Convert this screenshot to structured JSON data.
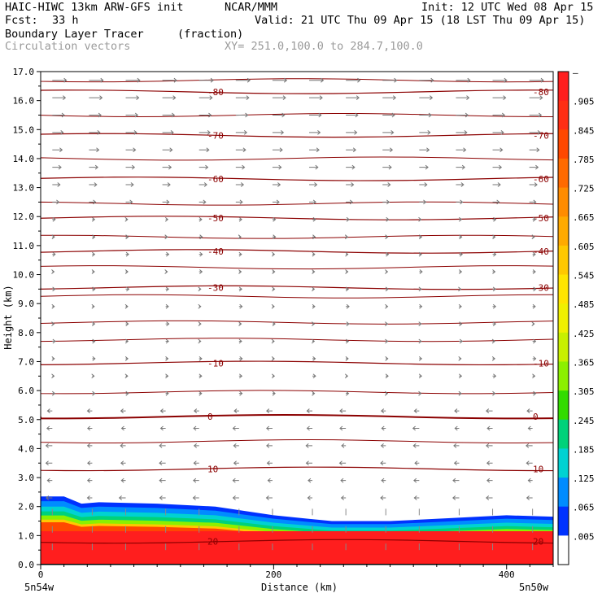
{
  "header": {
    "model": "HAIC-HIWC 13km ARW-GFS init",
    "org": "NCAR/MMM",
    "init": "Init: 12 UTC Wed 08 Apr 15",
    "fcst_label": "Fcst:",
    "fcst_value": "33 h",
    "valid": "Valid: 21 UTC Thu 09 Apr 15 (18 LST Thu 09 Apr 15)",
    "field": "Boundary Layer Tracer",
    "units": "(fraction)",
    "vectors": "Circulation vectors",
    "xy": "XY= 251.0,100.0 to 284.7,100.0"
  },
  "chart_data": {
    "type": "heatmap",
    "ylabel": "Height (km)",
    "xlabel": "Distance (km)",
    "xlim": [
      0,
      440
    ],
    "ylim": [
      0,
      17
    ],
    "yticks": [
      "0.0",
      "1.0",
      "2.0",
      "3.0",
      "4.0",
      "5.0",
      "6.0",
      "7.0",
      "8.0",
      "9.0",
      "10.0",
      "11.0",
      "12.0",
      "13.0",
      "14.0",
      "15.0",
      "16.0",
      "17.0"
    ],
    "xticks": [
      "0",
      "200",
      "400"
    ],
    "x_end_labels": {
      "left": "5n54w",
      "right": "5n50w"
    },
    "colorbar": {
      "labels": [
        "–",
        ".905",
        ".845",
        ".785",
        ".725",
        ".665",
        ".605",
        ".545",
        ".485",
        ".425",
        ".365",
        ".305",
        ".245",
        ".185",
        ".125",
        ".065",
        ".005"
      ],
      "colors": [
        "#ff1e1e",
        "#ff2e14",
        "#ff4800",
        "#ff6a00",
        "#ff8c00",
        "#ffaa00",
        "#ffc800",
        "#ffe400",
        "#f0f000",
        "#c8f000",
        "#8cf000",
        "#32dc00",
        "#00d27a",
        "#00d2d2",
        "#008cff",
        "#0032ff",
        "#ffffff"
      ]
    },
    "temperature_contours": [
      {
        "label": "20",
        "y": 0.8
      },
      {
        "label": "10",
        "y": 3.3
      },
      {
        "label": "0",
        "y": 5.1
      },
      {
        "label": "-10",
        "y": 6.95
      },
      {
        "label": "-30",
        "y": 9.55
      },
      {
        "label": "-40",
        "y": 10.8
      },
      {
        "label": "-50",
        "y": 11.95
      },
      {
        "label": "-60",
        "y": 13.3
      },
      {
        "label": "-70",
        "y": 14.8
      },
      {
        "label": "-80",
        "y": 16.3
      }
    ],
    "tracer_top_km": [
      [
        0,
        2.35
      ],
      [
        20,
        2.35
      ],
      [
        35,
        2.1
      ],
      [
        50,
        2.15
      ],
      [
        100,
        2.1
      ],
      [
        150,
        2.0
      ],
      [
        200,
        1.7
      ],
      [
        250,
        1.5
      ],
      [
        300,
        1.5
      ],
      [
        350,
        1.6
      ],
      [
        400,
        1.7
      ],
      [
        440,
        1.65
      ]
    ]
  }
}
